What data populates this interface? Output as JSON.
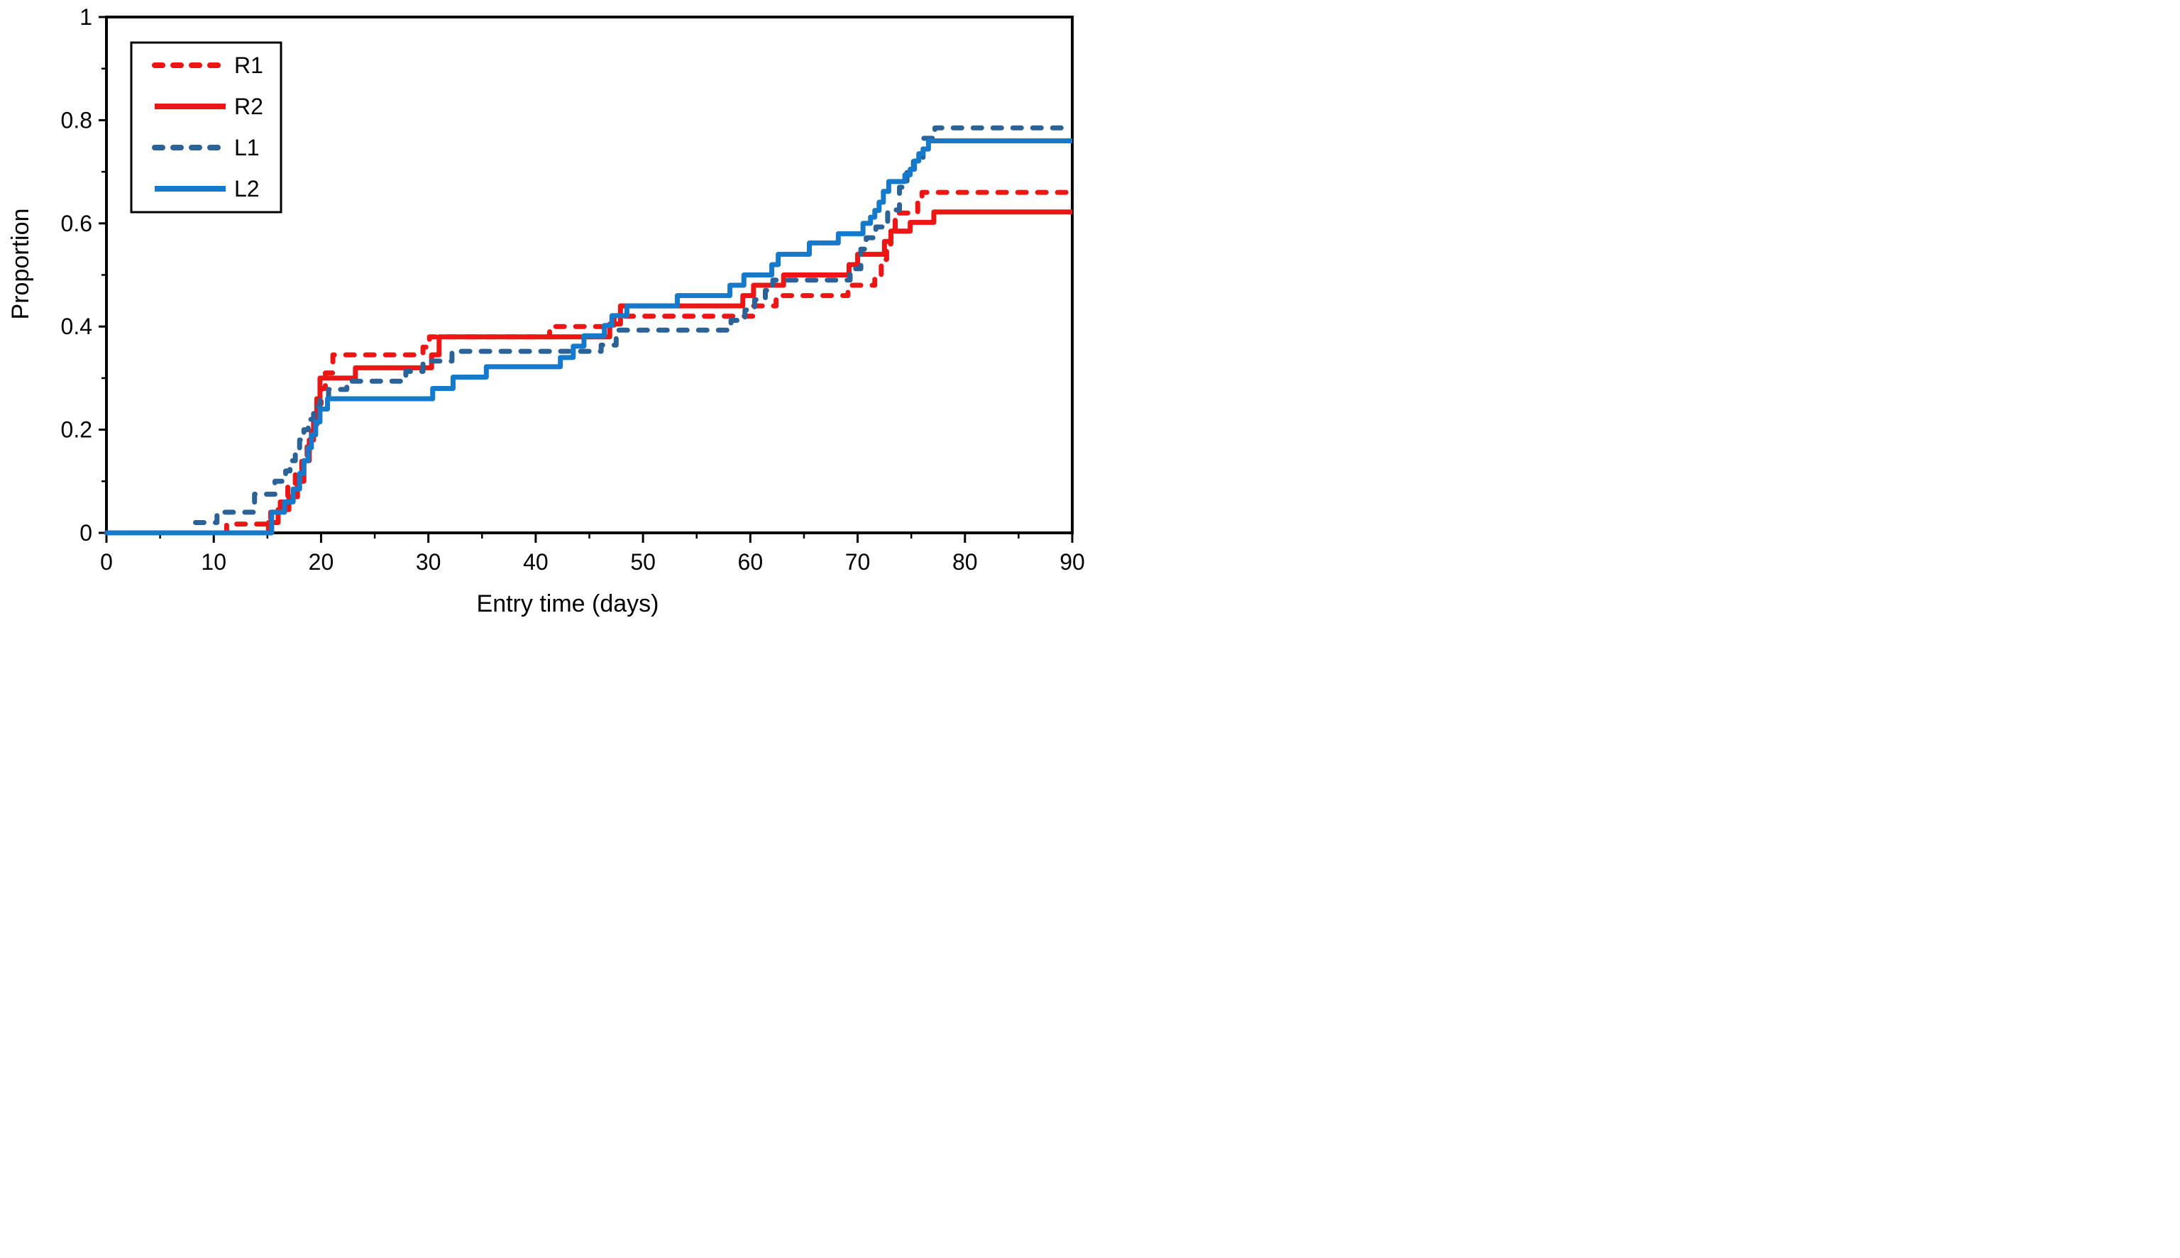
{
  "chart_data": {
    "type": "line",
    "subtype": "step",
    "title": "",
    "xlabel": "Entry time (days)",
    "ylabel": "Proportion",
    "xlim": [
      0,
      90
    ],
    "ylim": [
      0,
      1
    ],
    "x_major_ticks": [
      0,
      10,
      20,
      30,
      40,
      50,
      60,
      70,
      80,
      90
    ],
    "x_minor_ticks": [
      5,
      15,
      25,
      35,
      45,
      55,
      65,
      75,
      85
    ],
    "y_major_ticks": [
      0,
      0.2,
      0.4,
      0.6,
      0.8,
      1
    ],
    "y_tick_labels": [
      "0",
      "0.2",
      "0.4",
      "0.6",
      "0.8",
      "1"
    ],
    "y_minor_ticks": [
      0.1,
      0.3,
      0.5,
      0.7,
      0.9
    ],
    "grid": false,
    "legend_position": "top-left",
    "legend_entries": [
      "R1",
      "R2",
      "L1",
      "L2"
    ],
    "axis_color": "#000000",
    "series": [
      {
        "name": "R1",
        "color": "#ee1515",
        "dash": true,
        "points": [
          [
            0,
            0
          ],
          [
            11.2,
            0.017
          ],
          [
            15.3,
            0.04
          ],
          [
            16.2,
            0.06
          ],
          [
            16.9,
            0.09
          ],
          [
            17.6,
            0.12
          ],
          [
            18.2,
            0.15
          ],
          [
            18.7,
            0.18
          ],
          [
            19.1,
            0.21
          ],
          [
            19.6,
            0.25
          ],
          [
            20.0,
            0.28
          ],
          [
            20.4,
            0.31
          ],
          [
            21.1,
            0.345
          ],
          [
            29.5,
            0.36
          ],
          [
            30.1,
            0.38
          ],
          [
            41.3,
            0.4
          ],
          [
            47.3,
            0.42
          ],
          [
            60.3,
            0.44
          ],
          [
            62.4,
            0.46
          ],
          [
            69.1,
            0.48
          ],
          [
            71.6,
            0.5
          ],
          [
            72.2,
            0.53
          ],
          [
            72.7,
            0.56
          ],
          [
            73.1,
            0.59
          ],
          [
            73.5,
            0.62
          ],
          [
            75.6,
            0.64
          ],
          [
            76.0,
            0.66
          ]
        ]
      },
      {
        "name": "R2",
        "color": "#ee1515",
        "dash": false,
        "points": [
          [
            0,
            0
          ],
          [
            15.1,
            0.02
          ],
          [
            16.0,
            0.045
          ],
          [
            17.0,
            0.07
          ],
          [
            17.8,
            0.1
          ],
          [
            18.4,
            0.14
          ],
          [
            18.9,
            0.18
          ],
          [
            19.3,
            0.22
          ],
          [
            19.6,
            0.26
          ],
          [
            19.9,
            0.3
          ],
          [
            23.2,
            0.32
          ],
          [
            30.3,
            0.345
          ],
          [
            31.0,
            0.38
          ],
          [
            46.9,
            0.405
          ],
          [
            47.9,
            0.44
          ],
          [
            59.3,
            0.46
          ],
          [
            60.3,
            0.48
          ],
          [
            63.1,
            0.5
          ],
          [
            69.2,
            0.52
          ],
          [
            70.0,
            0.54
          ],
          [
            72.5,
            0.565
          ],
          [
            73.1,
            0.585
          ],
          [
            74.9,
            0.602
          ],
          [
            77.1,
            0.622
          ]
        ]
      },
      {
        "name": "L1",
        "color": "#2b6399",
        "dash": true,
        "points": [
          [
            0,
            0
          ],
          [
            8.2,
            0.02
          ],
          [
            10.3,
            0.04
          ],
          [
            13.8,
            0.075
          ],
          [
            15.7,
            0.1
          ],
          [
            16.7,
            0.12
          ],
          [
            17.1,
            0.14
          ],
          [
            17.6,
            0.16
          ],
          [
            18.0,
            0.18
          ],
          [
            18.4,
            0.2
          ],
          [
            18.8,
            0.22
          ],
          [
            19.3,
            0.245
          ],
          [
            19.9,
            0.262
          ],
          [
            20.7,
            0.278
          ],
          [
            22.4,
            0.294
          ],
          [
            27.9,
            0.313
          ],
          [
            29.5,
            0.333
          ],
          [
            32.2,
            0.352
          ],
          [
            46.1,
            0.364
          ],
          [
            47.5,
            0.393
          ],
          [
            58.2,
            0.412
          ],
          [
            59.5,
            0.432
          ],
          [
            60.4,
            0.452
          ],
          [
            61.4,
            0.47
          ],
          [
            62.1,
            0.49
          ],
          [
            69.3,
            0.512
          ],
          [
            70.3,
            0.55
          ],
          [
            70.8,
            0.572
          ],
          [
            71.7,
            0.593
          ],
          [
            72.8,
            0.626
          ],
          [
            73.9,
            0.67
          ],
          [
            74.6,
            0.7
          ],
          [
            75.2,
            0.72
          ],
          [
            76.1,
            0.765
          ],
          [
            77.2,
            0.785
          ]
        ]
      },
      {
        "name": "L2",
        "color": "#1579cc",
        "dash": false,
        "points": [
          [
            0,
            0
          ],
          [
            15.4,
            0.04
          ],
          [
            16.6,
            0.06
          ],
          [
            17.4,
            0.085
          ],
          [
            18.0,
            0.115
          ],
          [
            18.4,
            0.14
          ],
          [
            18.8,
            0.165
          ],
          [
            19.1,
            0.19
          ],
          [
            19.5,
            0.215
          ],
          [
            19.9,
            0.24
          ],
          [
            20.6,
            0.26
          ],
          [
            30.4,
            0.28
          ],
          [
            32.3,
            0.302
          ],
          [
            35.4,
            0.322
          ],
          [
            42.3,
            0.34
          ],
          [
            43.5,
            0.362
          ],
          [
            44.5,
            0.382
          ],
          [
            46.4,
            0.402
          ],
          [
            47.1,
            0.421
          ],
          [
            48.5,
            0.44
          ],
          [
            53.2,
            0.46
          ],
          [
            58.1,
            0.48
          ],
          [
            59.4,
            0.5
          ],
          [
            62.0,
            0.52
          ],
          [
            62.6,
            0.54
          ],
          [
            65.5,
            0.562
          ],
          [
            68.2,
            0.58
          ],
          [
            70.5,
            0.6
          ],
          [
            71.2,
            0.612
          ],
          [
            71.6,
            0.625
          ],
          [
            72.0,
            0.641
          ],
          [
            72.4,
            0.662
          ],
          [
            72.9,
            0.681
          ],
          [
            74.4,
            0.694
          ],
          [
            74.9,
            0.705
          ],
          [
            75.3,
            0.721
          ],
          [
            75.7,
            0.735
          ],
          [
            76.1,
            0.744
          ],
          [
            76.6,
            0.76
          ]
        ]
      }
    ]
  }
}
